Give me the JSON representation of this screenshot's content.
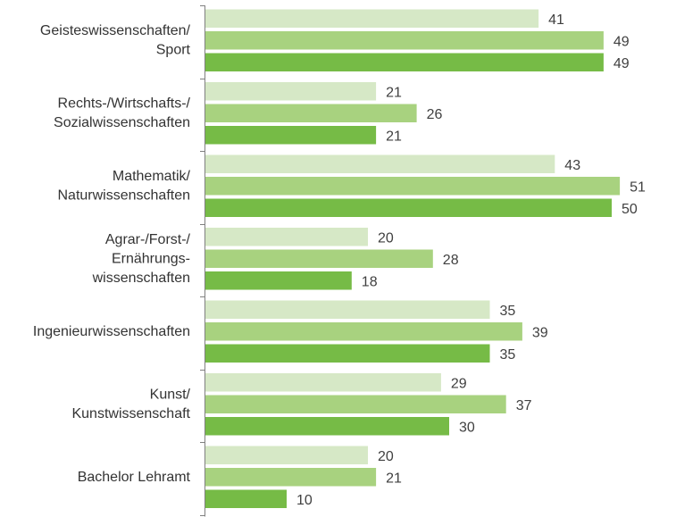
{
  "chart_data": {
    "type": "bar",
    "orientation": "horizontal",
    "categories": [
      [
        "Geisteswissenschaften/",
        "Sport"
      ],
      [
        "Rechts-/Wirtschafts-/",
        "Sozialwissenschaften"
      ],
      [
        "Mathematik/",
        "Naturwissenschaften"
      ],
      [
        "Agrar-/Forst-/",
        "Ernährungs-",
        "wissenschaften"
      ],
      [
        "Ingenieurwissenschaften"
      ],
      [
        "Kunst/",
        "Kunstwissenschaft"
      ],
      [
        "Bachelor Lehramt"
      ]
    ],
    "series": [
      {
        "color": "#d6e8c6",
        "values": [
          41,
          21,
          43,
          20,
          35,
          29,
          20
        ]
      },
      {
        "color": "#a8d27f",
        "values": [
          49,
          26,
          51,
          28,
          39,
          37,
          21
        ]
      },
      {
        "color": "#76bb46",
        "values": [
          49,
          21,
          50,
          18,
          35,
          30,
          10
        ]
      }
    ],
    "xlim": [
      0,
      55
    ],
    "title": "",
    "xlabel": "",
    "ylabel": "",
    "grid": false,
    "legend": "none",
    "axis_color": "#808080"
  }
}
